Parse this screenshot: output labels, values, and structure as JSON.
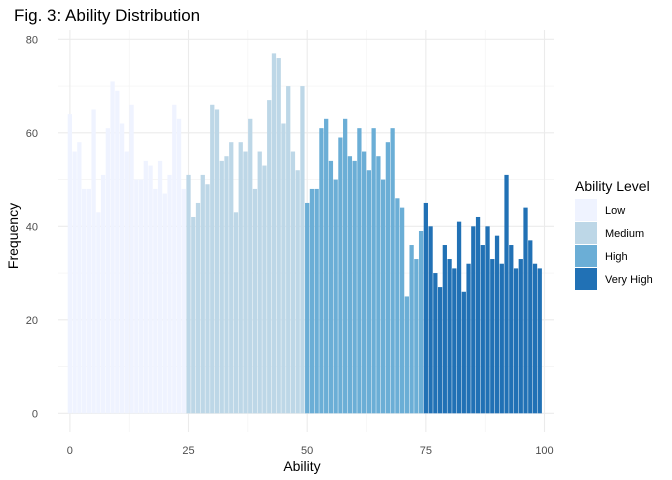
{
  "chart_data": {
    "type": "bar",
    "title": "Fig. 3: Ability Distribution",
    "xlabel": "Ability",
    "ylabel": "Frequency",
    "xlim": [
      -2.5,
      102
    ],
    "ylim": [
      -4,
      82
    ],
    "x_ticks": [
      0,
      25,
      50,
      75,
      100
    ],
    "y_ticks": [
      0,
      20,
      40,
      60,
      80
    ],
    "grid": true,
    "legend": {
      "title": "Ability Level",
      "position": "right",
      "entries": [
        {
          "name": "Low",
          "color": "#eff3ff"
        },
        {
          "name": "Medium",
          "color": "#bdd7e7"
        },
        {
          "name": "High",
          "color": "#6baed6"
        },
        {
          "name": "Very High",
          "color": "#2171b5"
        }
      ]
    },
    "series": [
      {
        "name": "Low",
        "color": "#eff3ff",
        "x": [
          0,
          1,
          2,
          3,
          4,
          5,
          6,
          7,
          8,
          9,
          10,
          11,
          12,
          13,
          14,
          15,
          16,
          17,
          18,
          19,
          20,
          21,
          22,
          23,
          24
        ],
        "values": [
          64,
          56,
          58,
          48,
          48,
          65,
          43,
          51,
          61,
          71,
          69,
          62,
          56,
          66,
          50,
          50,
          54,
          53,
          48,
          54,
          47,
          51,
          66,
          63,
          48
        ]
      },
      {
        "name": "Medium",
        "color": "#bdd7e7",
        "x": [
          25,
          26,
          27,
          28,
          29,
          30,
          31,
          32,
          33,
          34,
          35,
          36,
          37,
          38,
          39,
          40,
          41,
          42,
          43,
          44,
          45,
          46,
          47,
          48,
          49
        ],
        "values": [
          51,
          42,
          45,
          51,
          49,
          66,
          65,
          54,
          55,
          58,
          43,
          58,
          56,
          63,
          48,
          56,
          53,
          67,
          77,
          76,
          62,
          70,
          56,
          52,
          70
        ]
      },
      {
        "name": "High",
        "color": "#6baed6",
        "x": [
          50,
          51,
          52,
          53,
          54,
          55,
          56,
          57,
          58,
          59,
          60,
          61,
          62,
          63,
          64,
          65,
          66,
          67,
          68,
          69,
          70,
          71,
          72,
          73,
          74
        ],
        "values": [
          45,
          48,
          48,
          61,
          63,
          54,
          50,
          59,
          63,
          55,
          54,
          61,
          56,
          52,
          61,
          55,
          50,
          58,
          61,
          46,
          44,
          25,
          36,
          33,
          39
        ]
      },
      {
        "name": "Very High",
        "color": "#2171b5",
        "x": [
          75,
          76,
          77,
          78,
          79,
          80,
          81,
          82,
          83,
          84,
          85,
          86,
          87,
          88,
          89,
          90,
          91,
          92,
          93,
          94,
          95,
          96,
          97,
          98,
          99
        ],
        "values": [
          45,
          40,
          30,
          27,
          36,
          33,
          31,
          41,
          26,
          32,
          40,
          42,
          36,
          40,
          33,
          38,
          32,
          51,
          36,
          31,
          33,
          44,
          37,
          32,
          31
        ]
      }
    ]
  }
}
